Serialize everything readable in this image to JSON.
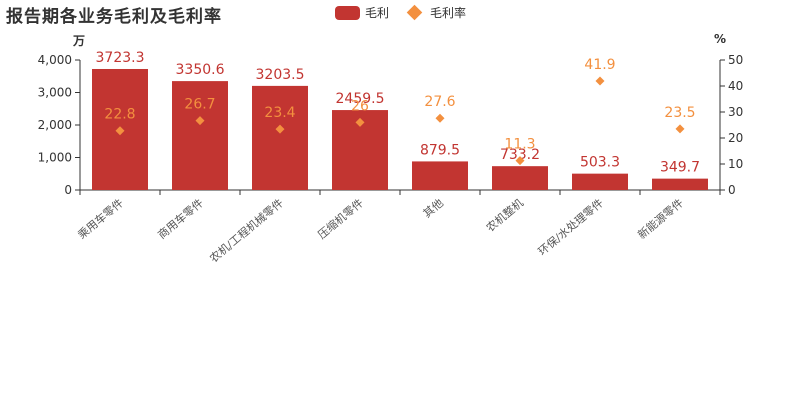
{
  "page": {
    "title": "报告期各业务毛利及毛利率"
  },
  "legend": {
    "bar_label": "毛利",
    "line_label": "毛利率"
  },
  "axes": {
    "left_unit": "万",
    "right_unit": "%"
  },
  "colors": {
    "bar": "#c23531",
    "line": "#f3903f",
    "bar_label": "#c23531",
    "line_label": "#f3903f"
  },
  "chart_data": {
    "type": "bar",
    "categories": [
      "乘用车零件",
      "商用车零件",
      "农机/工程机械零件",
      "压缩机零件",
      "其他",
      "农机整机",
      "环保/水处理零件",
      "新能源零件"
    ],
    "series": [
      {
        "name": "毛利",
        "type": "bar",
        "axis": "left",
        "values": [
          3723.3,
          3350.6,
          3203.5,
          2459.5,
          879.5,
          733.2,
          503.3,
          349.7
        ]
      },
      {
        "name": "毛利率",
        "type": "scatter",
        "axis": "right",
        "values": [
          22.8,
          26.7,
          23.4,
          26,
          27.6,
          11.3,
          41.9,
          23.5
        ]
      }
    ],
    "y_left": {
      "min": 0,
      "max": 4000,
      "ticks": [
        "0",
        "1,000",
        "2,000",
        "3,000",
        "4,000"
      ],
      "label": "万"
    },
    "y_right": {
      "min": 0,
      "max": 50,
      "ticks": [
        "0",
        "10",
        "20",
        "30",
        "40",
        "50"
      ],
      "label": "%"
    },
    "grid": false,
    "legend_position": "top-center"
  }
}
